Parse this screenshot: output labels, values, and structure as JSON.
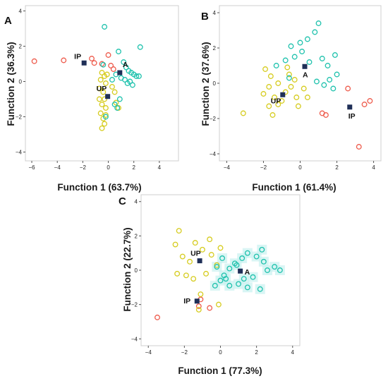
{
  "colors": {
    "IP": "#ee5c4d",
    "UP": "#d6cc1f",
    "A": "#1fc2ad",
    "centroid": "#1f2f57",
    "highlight": "#c9f1f0"
  },
  "chart_data": [
    {
      "type": "scatter",
      "panel": "A",
      "xlabel": "Function 1 (63.7%)",
      "ylabel": "Function 2 (36.3%)",
      "xlim": [
        -6.5,
        5.5
      ],
      "ylim": [
        -4.5,
        4.3
      ],
      "xticks": [
        -6,
        -4,
        -2,
        0,
        2,
        4
      ],
      "yticks": [
        -4,
        -2,
        0,
        2,
        4
      ],
      "centroids": [
        {
          "label": "IP",
          "x": -1.9,
          "y": 1.05
        },
        {
          "label": "A",
          "x": 0.9,
          "y": 0.5
        },
        {
          "label": "UP",
          "x": -0.05,
          "y": -0.85
        }
      ],
      "series": [
        {
          "group": "IP",
          "points": [
            [
              -5.8,
              1.15
            ],
            [
              -3.5,
              1.2
            ],
            [
              -1.1,
              1.05
            ],
            [
              -1.3,
              1.3
            ],
            [
              0.0,
              1.5
            ],
            [
              -0.5,
              1.0
            ],
            [
              0.2,
              0.9
            ],
            [
              0.4,
              0.7
            ]
          ]
        },
        {
          "group": "UP",
          "points": [
            [
              -0.5,
              0.5
            ],
            [
              -0.3,
              0.3
            ],
            [
              -0.6,
              0.1
            ],
            [
              -0.2,
              -0.1
            ],
            [
              -0.7,
              -0.4
            ],
            [
              -0.4,
              -0.6
            ],
            [
              -0.3,
              -1.0
            ],
            [
              -0.5,
              -1.3
            ],
            [
              -0.2,
              -1.5
            ],
            [
              -0.6,
              -1.8
            ],
            [
              -0.4,
              -2.1
            ],
            [
              -0.3,
              -2.4
            ],
            [
              -0.5,
              -2.65
            ],
            [
              -0.2,
              -1.9
            ],
            [
              0.6,
              -1.2
            ],
            [
              0.8,
              -1.5
            ],
            [
              0.3,
              -0.3
            ],
            [
              -0.1,
              0.4
            ],
            [
              0.5,
              -0.6
            ],
            [
              -0.7,
              -1.0
            ]
          ]
        },
        {
          "group": "A",
          "points": [
            [
              -0.3,
              3.1
            ],
            [
              2.5,
              1.95
            ],
            [
              0.8,
              1.7
            ],
            [
              1.2,
              1.1
            ],
            [
              1.4,
              0.8
            ],
            [
              1.6,
              0.6
            ],
            [
              1.8,
              0.5
            ],
            [
              2.0,
              0.4
            ],
            [
              2.2,
              0.3
            ],
            [
              2.4,
              0.3
            ],
            [
              1.0,
              0.2
            ],
            [
              1.3,
              0.1
            ],
            [
              1.7,
              0.0
            ],
            [
              1.9,
              -0.2
            ],
            [
              1.5,
              -0.1
            ],
            [
              0.6,
              0.4
            ],
            [
              -0.4,
              0.95
            ],
            [
              0.3,
              0.1
            ],
            [
              0.9,
              -1.0
            ],
            [
              -0.2,
              -2.0
            ],
            [
              0.5,
              -1.3
            ],
            [
              0.7,
              -1.5
            ]
          ]
        }
      ]
    },
    {
      "type": "scatter",
      "panel": "B",
      "xlabel": "Function 1 (61.4%)",
      "ylabel": "Function 2 (37.6%)",
      "xlim": [
        -4.4,
        4.4
      ],
      "ylim": [
        -4.4,
        4.4
      ],
      "xticks": [
        -4,
        -2,
        0,
        2,
        4
      ],
      "yticks": [
        -4,
        -2,
        0,
        2,
        4
      ],
      "centroids": [
        {
          "label": "A",
          "x": 0.25,
          "y": 0.95
        },
        {
          "label": "UP",
          "x": -0.95,
          "y": -0.65
        },
        {
          "label": "IP",
          "x": 2.7,
          "y": -1.35
        }
      ],
      "series": [
        {
          "group": "IP",
          "points": [
            [
              3.8,
              -1.0
            ],
            [
              3.5,
              -1.2
            ],
            [
              2.6,
              -0.3
            ],
            [
              1.4,
              -1.8
            ],
            [
              3.2,
              -3.6
            ],
            [
              1.2,
              -1.7
            ]
          ]
        },
        {
          "group": "UP",
          "points": [
            [
              -3.1,
              -1.7
            ],
            [
              -2.0,
              -0.6
            ],
            [
              -1.7,
              -1.3
            ],
            [
              -1.5,
              -1.8
            ],
            [
              -1.2,
              -1.2
            ],
            [
              -1.0,
              -1.0
            ],
            [
              -0.8,
              -0.5
            ],
            [
              -0.5,
              -0.2
            ],
            [
              -0.3,
              0.2
            ],
            [
              -0.6,
              0.5
            ],
            [
              -1.2,
              0.0
            ],
            [
              -1.6,
              0.4
            ],
            [
              -1.9,
              0.8
            ],
            [
              -0.2,
              -0.8
            ],
            [
              -0.1,
              -1.3
            ],
            [
              0.2,
              -0.3
            ],
            [
              0.4,
              -0.8
            ],
            [
              -1.4,
              -0.8
            ],
            [
              -0.7,
              0.9
            ],
            [
              -1.7,
              -0.2
            ]
          ]
        },
        {
          "group": "A",
          "points": [
            [
              1.0,
              3.4
            ],
            [
              0.8,
              2.9
            ],
            [
              0.4,
              2.5
            ],
            [
              0.0,
              2.3
            ],
            [
              -0.5,
              2.1
            ],
            [
              0.1,
              1.8
            ],
            [
              -0.3,
              1.5
            ],
            [
              -0.8,
              1.3
            ],
            [
              0.5,
              1.2
            ],
            [
              1.2,
              1.4
            ],
            [
              1.5,
              1.0
            ],
            [
              1.9,
              1.6
            ],
            [
              2.0,
              0.5
            ],
            [
              1.6,
              0.2
            ],
            [
              1.3,
              -0.1
            ],
            [
              1.8,
              -0.3
            ],
            [
              0.9,
              0.1
            ],
            [
              -0.6,
              0.3
            ],
            [
              -1.3,
              1.0
            ]
          ]
        }
      ]
    },
    {
      "type": "scatter",
      "panel": "C",
      "xlabel": "Function 1 (77.3%)",
      "ylabel": "Function 2 (22.7%)",
      "xlim": [
        -4.4,
        4.4
      ],
      "ylim": [
        -4.4,
        4.4
      ],
      "xticks": [
        -4,
        -2,
        0,
        2,
        4
      ],
      "yticks": [
        -4,
        -2,
        0,
        2,
        4
      ],
      "centroids": [
        {
          "label": "UP",
          "x": -1.15,
          "y": 0.55
        },
        {
          "label": "A",
          "x": 1.1,
          "y": -0.05
        },
        {
          "label": "IP",
          "x": -1.3,
          "y": -1.8
        }
      ],
      "series": [
        {
          "group": "IP",
          "points": [
            [
              -3.5,
              -2.75
            ],
            [
              -1.2,
              -2.1
            ],
            [
              -1.1,
              -1.7
            ],
            [
              -0.6,
              -2.2
            ]
          ]
        },
        {
          "group": "UP",
          "points": [
            [
              -2.3,
              2.3
            ],
            [
              -2.5,
              1.5
            ],
            [
              -2.1,
              0.8
            ],
            [
              -1.7,
              0.5
            ],
            [
              -1.4,
              1.6
            ],
            [
              -1.0,
              1.2
            ],
            [
              -0.5,
              0.9
            ],
            [
              -0.2,
              0.3
            ],
            [
              -0.8,
              -0.2
            ],
            [
              -1.5,
              -0.5
            ],
            [
              -2.4,
              -0.2
            ],
            [
              -1.1,
              -1.4
            ],
            [
              -1.2,
              -2.3
            ],
            [
              -0.1,
              -2.0
            ],
            [
              0.0,
              1.3
            ],
            [
              -0.6,
              1.8
            ],
            [
              -1.9,
              -0.3
            ]
          ]
        },
        {
          "group": "A",
          "points": [
            [
              2.3,
              1.2
            ],
            [
              2.0,
              0.8
            ],
            [
              1.5,
              1.0
            ],
            [
              1.2,
              0.7
            ],
            [
              0.8,
              0.4
            ],
            [
              0.5,
              0.1
            ],
            [
              0.2,
              -0.3
            ],
            [
              0.0,
              -0.6
            ],
            [
              -0.3,
              -0.9
            ],
            [
              0.5,
              -0.9
            ],
            [
              1.0,
              -0.8
            ],
            [
              1.5,
              -1.0
            ],
            [
              2.2,
              -1.1
            ],
            [
              1.8,
              -0.4
            ],
            [
              2.6,
              0.0
            ],
            [
              3.0,
              0.2
            ],
            [
              3.3,
              0.0
            ],
            [
              0.1,
              0.7
            ],
            [
              -0.2,
              0.2
            ],
            [
              0.9,
              0.3
            ],
            [
              2.4,
              0.5
            ],
            [
              0.3,
              -0.5
            ],
            [
              1.3,
              -0.5
            ]
          ]
        }
      ]
    }
  ]
}
